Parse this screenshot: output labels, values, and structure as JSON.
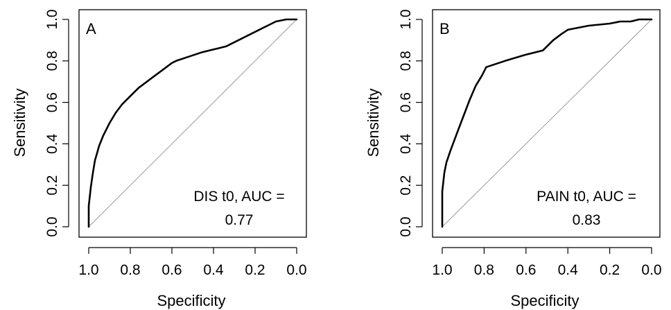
{
  "chart_data": [
    {
      "type": "line",
      "panel_label": "A",
      "xlabel": "Specificity",
      "ylabel": "Sensitivity",
      "x_reversed": true,
      "xlim": [
        1.0,
        0.0
      ],
      "ylim": [
        0.0,
        1.0
      ],
      "xticks": [
        1.0,
        0.8,
        0.6,
        0.4,
        0.2,
        0.0
      ],
      "yticks": [
        0.0,
        0.2,
        0.4,
        0.6,
        0.8,
        1.0
      ],
      "xtick_labels": [
        "1.0",
        "0.8",
        "0.6",
        "0.4",
        "0.2",
        "0.0"
      ],
      "ytick_labels": [
        "0.0",
        "0.2",
        "0.4",
        "0.6",
        "0.8",
        "1.0"
      ],
      "annotation_line1": "DIS t0, AUC =",
      "annotation_line2": "0.77",
      "grid": false,
      "reference_line": "diagonal",
      "series": [
        {
          "x": [
            1.0,
            1.0,
            0.99,
            0.98,
            0.97,
            0.95,
            0.93,
            0.9,
            0.87,
            0.84,
            0.8,
            0.76,
            0.72,
            0.68,
            0.64,
            0.6,
            0.58,
            0.52,
            0.46,
            0.42,
            0.38,
            0.34,
            0.3,
            0.26,
            0.22,
            0.18,
            0.14,
            0.1,
            0.05,
            0.0
          ],
          "y": [
            0.0,
            0.1,
            0.19,
            0.26,
            0.32,
            0.39,
            0.44,
            0.5,
            0.55,
            0.59,
            0.63,
            0.67,
            0.7,
            0.73,
            0.76,
            0.79,
            0.8,
            0.82,
            0.84,
            0.85,
            0.86,
            0.87,
            0.89,
            0.91,
            0.93,
            0.95,
            0.97,
            0.99,
            1.0,
            1.0
          ]
        }
      ]
    },
    {
      "type": "line",
      "panel_label": "B",
      "xlabel": "Specificity",
      "ylabel": "Sensitivity",
      "x_reversed": true,
      "xlim": [
        1.0,
        0.0
      ],
      "ylim": [
        0.0,
        1.0
      ],
      "xticks": [
        1.0,
        0.8,
        0.6,
        0.4,
        0.2,
        0.0
      ],
      "yticks": [
        0.0,
        0.2,
        0.4,
        0.6,
        0.8,
        1.0
      ],
      "xtick_labels": [
        "1.0",
        "0.8",
        "0.6",
        "0.4",
        "0.2",
        "0.0"
      ],
      "ytick_labels": [
        "0.0",
        "0.2",
        "0.4",
        "0.6",
        "0.8",
        "1.0"
      ],
      "annotation_line1": "PAIN t0, AUC =",
      "annotation_line2": "0.83",
      "grid": false,
      "reference_line": "diagonal",
      "series": [
        {
          "x": [
            1.0,
            1.0,
            0.99,
            0.98,
            0.96,
            0.93,
            0.9,
            0.87,
            0.84,
            0.81,
            0.79,
            0.7,
            0.6,
            0.52,
            0.47,
            0.43,
            0.4,
            0.3,
            0.2,
            0.15,
            0.1,
            0.06,
            0.0
          ],
          "y": [
            0.0,
            0.17,
            0.26,
            0.31,
            0.37,
            0.45,
            0.53,
            0.61,
            0.68,
            0.73,
            0.77,
            0.8,
            0.83,
            0.85,
            0.9,
            0.93,
            0.95,
            0.97,
            0.98,
            0.99,
            0.99,
            1.0,
            1.0
          ]
        }
      ]
    }
  ]
}
